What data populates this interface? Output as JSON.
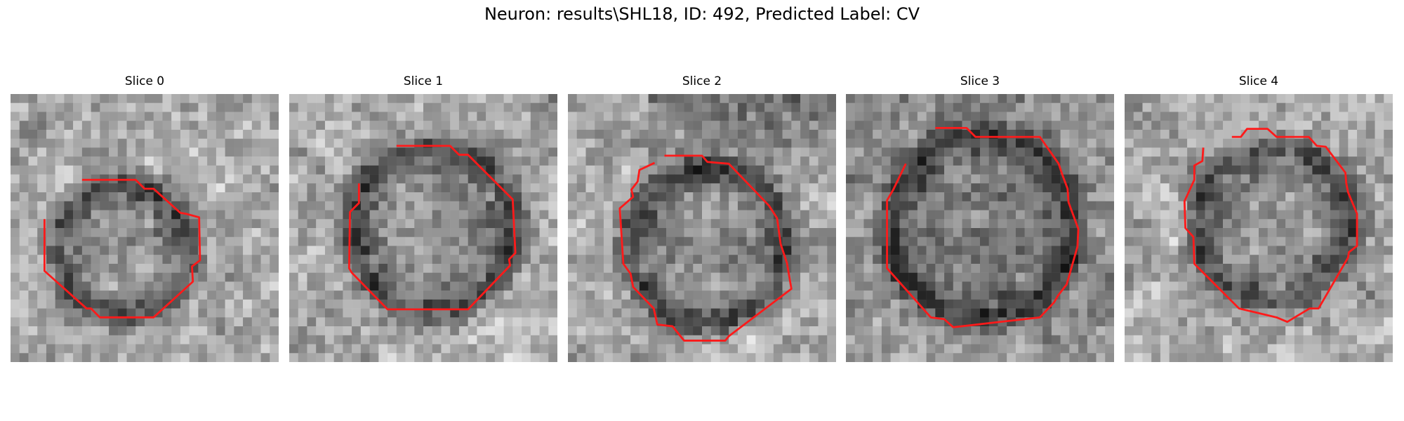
{
  "figure": {
    "title": "Neuron: results\\SHL18, ID: 492, Predicted Label: CV"
  },
  "colors": {
    "contour": "#ff1a1a",
    "background": "#ffffff"
  },
  "panels": [
    {
      "title": "Slice 0",
      "contour_color": "#ff1a1a",
      "seed": 11
    },
    {
      "title": "Slice 1",
      "contour_color": "#ff1a1a",
      "seed": 23
    },
    {
      "title": "Slice 2",
      "contour_color": "#ff1a1a",
      "seed": 37
    },
    {
      "title": "Slice 3",
      "contour_color": "#ff1a1a",
      "seed": 53
    },
    {
      "title": "Slice 4",
      "contour_color": "#ff1a1a",
      "seed": 71
    }
  ]
}
